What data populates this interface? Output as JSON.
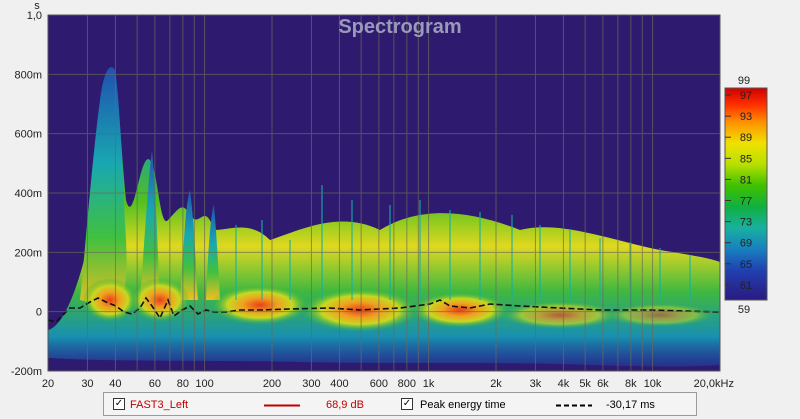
{
  "window": {
    "title": "Spectrogram"
  },
  "axes": {
    "y_unit": "s",
    "y_ticks": [
      "1,0",
      "800m",
      "600m",
      "400m",
      "200m",
      "0",
      "-200m"
    ],
    "x_ticks": [
      "20",
      "30",
      "40",
      "60",
      "80",
      "100",
      "200",
      "300",
      "400",
      "600",
      "800",
      "1k",
      "2k",
      "3k",
      "4k",
      "5k",
      "6k",
      "8k",
      "10k",
      "20,0kHz"
    ]
  },
  "colorbar": {
    "top_label": "99",
    "bottom_label": "59",
    "ticks": [
      "97",
      "93",
      "89",
      "85",
      "81",
      "77",
      "73",
      "69",
      "65",
      "61"
    ]
  },
  "legend": {
    "measurement_checked": true,
    "measurement_name": "FAST3_Left",
    "measurement_value": "68,9 dB",
    "measurement_color": "#c00000",
    "peak_checked": true,
    "peak_label": "Peak energy time",
    "peak_value": "-30,17 ms"
  },
  "colors": {
    "plot_background": "#2e1a6e",
    "grid": "#6a6a5a"
  }
}
